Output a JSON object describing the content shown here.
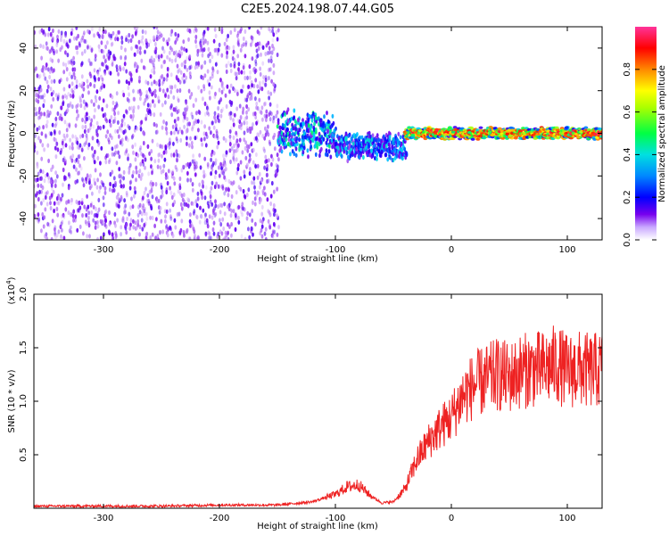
{
  "title": "C2E5.2024.198.07.44.G05",
  "chart_data": [
    {
      "type": "heatmap",
      "xlabel": "Height of straight line (km)",
      "ylabel": "Frequency (Hz)",
      "xlim": [
        -360,
        130
      ],
      "ylim": [
        -50,
        50
      ],
      "xticks": [
        -300,
        -200,
        -100,
        0,
        100
      ],
      "yticks": [
        -40,
        -20,
        0,
        20,
        40
      ],
      "colorbar": {
        "label": "Normalized spectral amplitude",
        "range": [
          0,
          1
        ],
        "ticks": [
          0.0,
          0.2,
          0.4,
          0.6,
          0.8
        ],
        "colors": [
          "#ffffff",
          "#7700ee",
          "#0000ff",
          "#00ccff",
          "#00ff44",
          "#ffff00",
          "#ff6600",
          "#ff0000",
          "#ff33aa"
        ]
      },
      "regions": [
        {
          "x": [
            -360,
            -150
          ],
          "freq_center": 0,
          "freq_spread": 50,
          "amplitude": 0.12
        },
        {
          "x": [
            -150,
            -100
          ],
          "freq_center": 0,
          "freq_spread": 12,
          "amplitude": 0.3
        },
        {
          "x": [
            -100,
            -40
          ],
          "freq_center": -6,
          "freq_spread": 7,
          "amplitude": 0.28
        },
        {
          "x": [
            -40,
            130
          ],
          "freq_center": 0,
          "freq_spread": 3,
          "amplitude": 0.55
        }
      ]
    },
    {
      "type": "line",
      "xlabel": "Height of straight line (km)",
      "ylabel": "SNR (10 * v/v)",
      "ylabel_exponent": "(x10",
      "ylabel_exponent_power": "4",
      "ylabel_exponent_close": ")",
      "xlim": [
        -360,
        130
      ],
      "ylim": [
        0,
        2.0
      ],
      "xticks": [
        -300,
        -200,
        -100,
        0,
        100
      ],
      "yticks": [
        "0.5",
        "1.0",
        "1.5",
        "2.0"
      ],
      "series": [
        {
          "color": "#ee2222",
          "x": [
            -360,
            -300,
            -250,
            -200,
            -150,
            -120,
            -100,
            -90,
            -80,
            -70,
            -60,
            -50,
            -40,
            -30,
            -20,
            -10,
            0,
            10,
            20,
            30,
            40,
            50,
            60,
            70,
            80,
            90,
            100,
            110,
            120,
            130
          ],
          "values": [
            0.02,
            0.02,
            0.02,
            0.03,
            0.03,
            0.06,
            0.13,
            0.2,
            0.22,
            0.12,
            0.05,
            0.06,
            0.18,
            0.45,
            0.62,
            0.75,
            0.85,
            1.05,
            1.15,
            1.2,
            1.25,
            1.22,
            1.28,
            1.3,
            1.3,
            1.35,
            1.28,
            1.3,
            1.28,
            1.3
          ]
        }
      ]
    }
  ]
}
